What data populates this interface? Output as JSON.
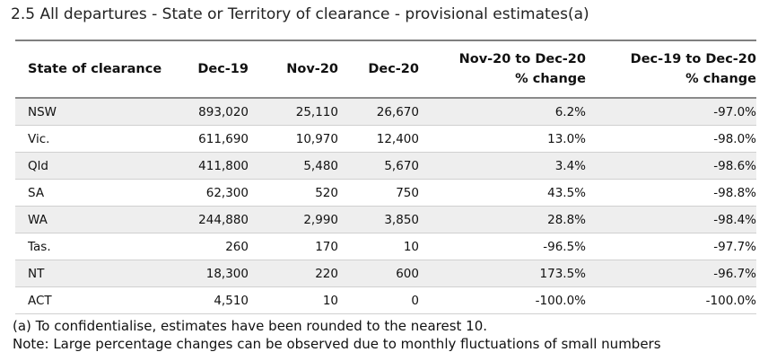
{
  "title": "2.5 All departures - State or Territory of clearance - provisional estimates(a)",
  "table": {
    "headers": [
      {
        "line1": "State of clearance",
        "line2": ""
      },
      {
        "line1": "Dec-19",
        "line2": ""
      },
      {
        "line1": "Nov-20",
        "line2": ""
      },
      {
        "line1": "Dec-20",
        "line2": ""
      },
      {
        "line1": "Nov-20 to Dec-20",
        "line2": "% change"
      },
      {
        "line1": "Dec-19 to Dec-20",
        "line2": "% change"
      }
    ],
    "rows": [
      [
        "NSW",
        "893,020",
        "25,110",
        "26,670",
        "6.2%",
        "-97.0%"
      ],
      [
        "Vic.",
        "611,690",
        "10,970",
        "12,400",
        "13.0%",
        "-98.0%"
      ],
      [
        "Qld",
        "411,800",
        "5,480",
        "5,670",
        "3.4%",
        "-98.6%"
      ],
      [
        "SA",
        "62,300",
        "520",
        "750",
        "43.5%",
        "-98.8%"
      ],
      [
        "WA",
        "244,880",
        "2,990",
        "3,850",
        "28.8%",
        "-98.4%"
      ],
      [
        "Tas.",
        "260",
        "170",
        "10",
        "-96.5%",
        "-97.7%"
      ],
      [
        "NT",
        "18,300",
        "220",
        "600",
        "173.5%",
        "-96.7%"
      ],
      [
        "ACT",
        "4,510",
        "10",
        "0",
        "-100.0%",
        "-100.0%"
      ]
    ]
  },
  "notes": [
    "(a) To confidentialise, estimates have been rounded to the nearest 10.",
    "Note: Large percentage changes can be observed due to monthly fluctuations of small numbers"
  ]
}
